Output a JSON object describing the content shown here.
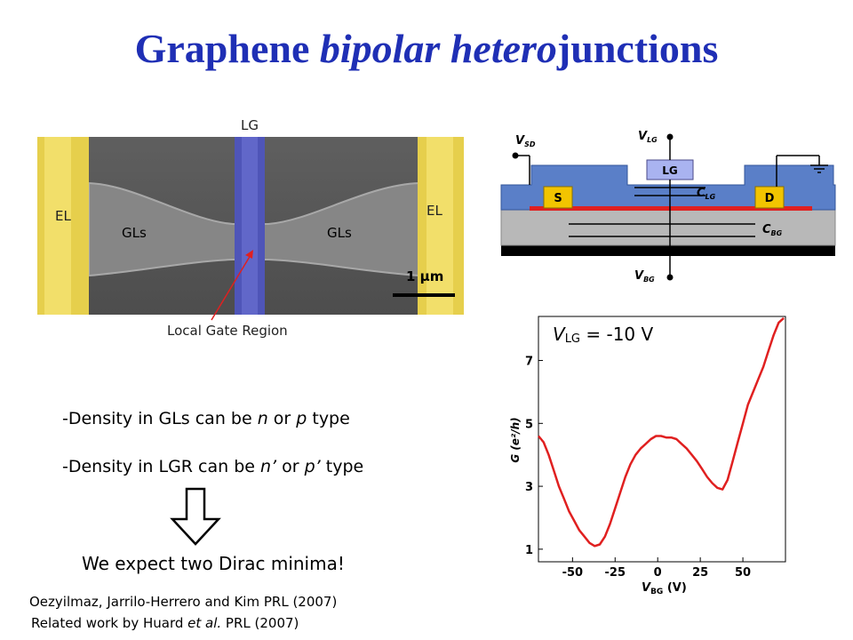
{
  "title": {
    "part1": "Graphene ",
    "part2": "bipolar hetero",
    "part3": "junctions"
  },
  "sem": {
    "lg": "LG",
    "el_left": "EL",
    "el_right": "EL",
    "gls_left": "GLs",
    "gls_right": "GLs",
    "scalebar": "1 μm",
    "local_gate": "Local Gate Region"
  },
  "schematic": {
    "vsd": "V",
    "vsd_sub": "SD",
    "vlg": "V",
    "vlg_sub": "LG",
    "vbg": "V",
    "vbg_sub": "BG",
    "lg": "LG",
    "s": "S",
    "d": "D",
    "clg": "C",
    "clg_sub": "LG",
    "cbg": "C",
    "cbg_sub": "BG"
  },
  "bullets": {
    "b1_a": "-Density in GLs can be ",
    "b1_n": "n",
    "b1_b": "  or ",
    "b1_p": "p",
    "b1_c": " type",
    "b2_a": "-Density in LGR can be ",
    "b2_n": "n’",
    "b2_b": "  or ",
    "b2_p": "p’",
    "b2_c": " type"
  },
  "expect": "We expect two Dirac minima!",
  "refs": {
    "r1": "Oezyilmaz, Jarrilo-Herrero and Kim PRL (2007)",
    "r2_a": "Related work by Huard ",
    "r2_i": "et al.",
    "r2_b": " PRL (2007)"
  },
  "chart_data": {
    "type": "line",
    "annotation": "V LG = -10 V",
    "annotation_parts": {
      "v": "V",
      "sub": "LG",
      "rest": " = -10 V"
    },
    "xlabel_parts": {
      "v": "V",
      "sub": "BG",
      "unit": " (V)"
    },
    "ylabel": "G (e²/h)",
    "x_ticks": [
      "-50",
      "-25",
      "0",
      "25",
      "50"
    ],
    "x_tick_values": [
      -50,
      -25,
      0,
      25,
      50
    ],
    "y_ticks": [
      "1",
      "3",
      "5",
      "7"
    ],
    "y_tick_values": [
      1,
      3,
      5,
      7
    ],
    "xlim": [
      -70,
      75
    ],
    "ylim": [
      0.6,
      8.4
    ],
    "series": [
      {
        "color": "#e02020",
        "x": [
          -70,
          -67,
          -64,
          -61,
          -58,
          -55,
          -52,
          -49,
          -46,
          -43,
          -40,
          -37,
          -34,
          -31,
          -28,
          -25,
          -22,
          -19,
          -16,
          -13,
          -10,
          -7,
          -4,
          -1,
          2,
          5,
          8,
          11,
          14,
          17,
          20,
          23,
          26,
          29,
          32,
          35,
          38,
          41,
          44,
          47,
          50,
          53,
          56,
          59,
          62,
          65,
          68,
          71,
          74
        ],
        "y": [
          4.6,
          4.4,
          4.0,
          3.5,
          3.0,
          2.6,
          2.2,
          1.9,
          1.6,
          1.4,
          1.2,
          1.1,
          1.15,
          1.4,
          1.8,
          2.3,
          2.8,
          3.3,
          3.7,
          4.0,
          4.2,
          4.35,
          4.5,
          4.6,
          4.6,
          4.55,
          4.55,
          4.5,
          4.35,
          4.2,
          4.0,
          3.8,
          3.55,
          3.3,
          3.1,
          2.95,
          2.9,
          3.2,
          3.8,
          4.4,
          5.0,
          5.6,
          6.0,
          6.4,
          6.8,
          7.3,
          7.8,
          8.2,
          8.35
        ]
      }
    ]
  }
}
